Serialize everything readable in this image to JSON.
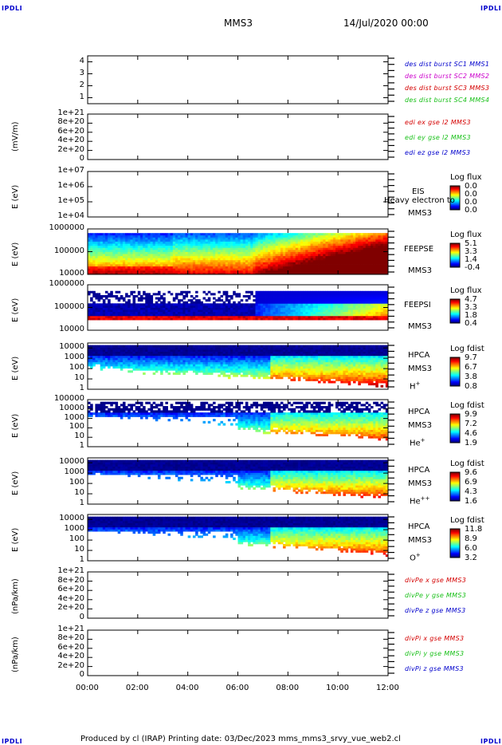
{
  "corners": {
    "tl": "IPDLI",
    "tr": "IPDLI",
    "bl": "IPDLI",
    "br": "IPDLI"
  },
  "header": {
    "mission": "MMS3",
    "datetime": "14/Jul/2020 00:00"
  },
  "footer": "Produced by cl (IRAP)   Printing date: 03/Dec/2023   mms_mms3_srvy_vue_web2.cl",
  "colors": {
    "red": "#d40000",
    "magenta": "#cc00cc",
    "green": "#18c018",
    "blue": "#0000cc"
  },
  "chart_data": [
    {
      "type": "line",
      "panel": "des-dist-burst",
      "yticks": [
        "1",
        "2",
        "3",
        "4"
      ],
      "ylim": [
        0.5,
        4.5
      ],
      "legend": [
        {
          "text": "des dist burst SC1 MMS1",
          "color": "blue"
        },
        {
          "text": "des dist burst SC2 MMS2",
          "color": "magenta"
        },
        {
          "text": "des dist burst SC3 MMS3",
          "color": "red"
        },
        {
          "text": "des dist burst SC4 MMS4",
          "color": "green"
        }
      ],
      "series": []
    },
    {
      "type": "line",
      "panel": "edi-e",
      "ylabel": "(mV/m)",
      "yticks": [
        "0",
        "2e+20",
        "4e+20",
        "6e+20",
        "8e+20",
        "1e+21"
      ],
      "ylim": [
        0,
        1e+21
      ],
      "legend": [
        {
          "text": "edi ex gse l2 MMS3",
          "color": "red"
        },
        {
          "text": "edi ey gse l2 MMS3",
          "color": "green"
        },
        {
          "text": "edi ez gse l2 MMS3",
          "color": "blue"
        }
      ],
      "series": []
    },
    {
      "type": "heatmap",
      "panel": "eis",
      "ylabel": "E (eV)",
      "yticks": [
        "1e+04",
        "1e+05",
        "1e+06",
        "1e+07"
      ],
      "ylim": [
        10000,
        10000000
      ],
      "yscale": "log",
      "side": [
        "EIS",
        "MMS3"
      ],
      "overlay": "Heavy electron to",
      "cb_title": "Log flux",
      "cb_ticks": [
        "0.0",
        "0.0",
        "0.0",
        "0.0"
      ]
    },
    {
      "type": "heatmap",
      "panel": "feepse",
      "ylabel": "E (eV)",
      "yticks": [
        "10000",
        "100000",
        "1000000"
      ],
      "ylim": [
        10000,
        1000000
      ],
      "yscale": "log",
      "side": [
        "FEEPSE",
        "MMS3"
      ],
      "cb_title": "Log flux",
      "cb_ticks": [
        "5.1",
        "3.3",
        "1.4",
        "-0.4"
      ]
    },
    {
      "type": "heatmap",
      "panel": "feepsi",
      "ylabel": "E (eV)",
      "yticks": [
        "10000",
        "100000",
        "1000000"
      ],
      "ylim": [
        10000,
        1000000
      ],
      "yscale": "log",
      "side": [
        "FEEPSI",
        "MMS3"
      ],
      "cb_title": "Log flux",
      "cb_ticks": [
        "4.7",
        "3.3",
        "1.8",
        "0.4"
      ]
    },
    {
      "type": "heatmap",
      "panel": "hpca-h",
      "ylabel": "E (eV)",
      "yticks": [
        "1",
        "10",
        "100",
        "1000",
        "10000"
      ],
      "ylim": [
        1,
        30000
      ],
      "yscale": "log",
      "side": [
        "HPCA",
        "MMS3",
        "H",
        "+"
      ],
      "cb_title": "Log fdist",
      "cb_ticks": [
        "9.7",
        "6.7",
        "3.8",
        "0.8"
      ]
    },
    {
      "type": "heatmap",
      "panel": "hpca-he",
      "ylabel": "E (eV)",
      "yticks": [
        "1",
        "10",
        "100",
        "1000",
        "10000",
        "100000"
      ],
      "ylim": [
        1,
        100000
      ],
      "yscale": "log",
      "side": [
        "HPCA",
        "MMS3",
        "He",
        "+"
      ],
      "cb_title": "Log fdist",
      "cb_ticks": [
        "9.9",
        "7.2",
        "4.6",
        "1.9"
      ]
    },
    {
      "type": "heatmap",
      "panel": "hpca-hepp",
      "ylabel": "E (eV)",
      "yticks": [
        "1",
        "10",
        "100",
        "1000",
        "10000"
      ],
      "ylim": [
        1,
        30000
      ],
      "yscale": "log",
      "side": [
        "HPCA",
        "MMS3",
        "He",
        "++"
      ],
      "cb_title": "Log fdist",
      "cb_ticks": [
        "9.6",
        "6.9",
        "4.3",
        "1.6"
      ]
    },
    {
      "type": "heatmap",
      "panel": "hpca-o",
      "ylabel": "E (eV)",
      "yticks": [
        "1",
        "10",
        "100",
        "1000",
        "10000"
      ],
      "ylim": [
        1,
        30000
      ],
      "yscale": "log",
      "side": [
        "HPCA",
        "MMS3",
        "O",
        "+"
      ],
      "cb_title": "Log fdist",
      "cb_ticks": [
        "11.8",
        "8.9",
        "6.0",
        "3.2"
      ]
    },
    {
      "type": "line",
      "panel": "divpe",
      "ylabel": "(nPa/km)",
      "yticks": [
        "0",
        "2e+20",
        "4e+20",
        "6e+20",
        "8e+20",
        "1e+21"
      ],
      "ylim": [
        0,
        1e+21
      ],
      "legend": [
        {
          "text": "divPe x gse MMS3",
          "color": "red"
        },
        {
          "text": "divPe y gse MMS3",
          "color": "green"
        },
        {
          "text": "divPe z gse MMS3",
          "color": "blue"
        }
      ],
      "series": []
    },
    {
      "type": "line",
      "panel": "divpi",
      "ylabel": "(nPa/km)",
      "yticks": [
        "0",
        "2e+20",
        "4e+20",
        "6e+20",
        "8e+20",
        "1e+21"
      ],
      "ylim": [
        0,
        1e+21
      ],
      "legend": [
        {
          "text": "divPi x gse MMS3",
          "color": "red"
        },
        {
          "text": "divPi y gse MMS3",
          "color": "green"
        },
        {
          "text": "divPi z gse MMS3",
          "color": "blue"
        }
      ],
      "series": []
    }
  ],
  "xaxis": {
    "ticks": [
      "00:00",
      "02:00",
      "04:00",
      "06:00",
      "08:00",
      "10:00",
      "12:00"
    ],
    "xlim": [
      0,
      12
    ]
  }
}
